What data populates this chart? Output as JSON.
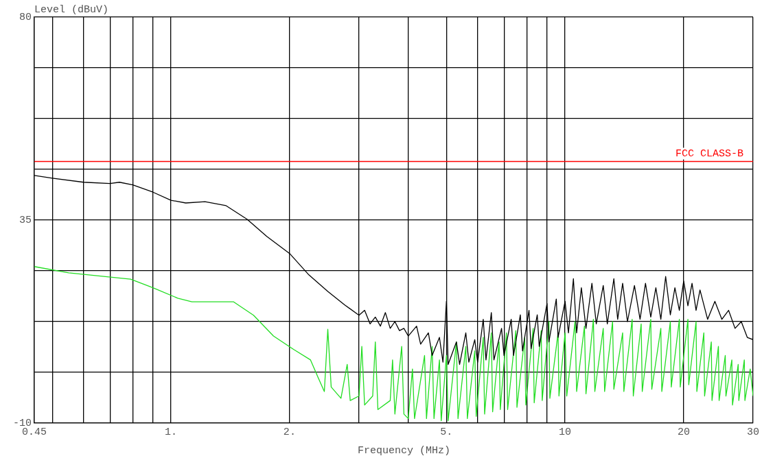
{
  "chart_data": {
    "type": "line",
    "xlabel": "Frequency (MHz)",
    "ylabel": "Level (dBuV)",
    "log": "x",
    "xlim": [
      0.45,
      30
    ],
    "ylim": [
      -10,
      80
    ],
    "xticks": [
      {
        "value": 0.45,
        "label": "0.45"
      },
      {
        "value": 0.5,
        "label": null
      },
      {
        "value": 0.6,
        "label": null
      },
      {
        "value": 0.7,
        "label": null
      },
      {
        "value": 0.8,
        "label": null
      },
      {
        "value": 0.9,
        "label": null
      },
      {
        "value": 1,
        "label": "1."
      },
      {
        "value": 2,
        "label": "2."
      },
      {
        "value": 3,
        "label": null
      },
      {
        "value": 4,
        "label": null
      },
      {
        "value": 5,
        "label": "5."
      },
      {
        "value": 6,
        "label": null
      },
      {
        "value": 7,
        "label": null
      },
      {
        "value": 8,
        "label": null
      },
      {
        "value": 9,
        "label": null
      },
      10,
      20,
      30
    ],
    "yticks": [
      80,
      {
        "value": 68.75,
        "label": null
      },
      {
        "value": 57.5,
        "label": null
      },
      {
        "value": 46.25,
        "label": null
      },
      35,
      {
        "value": 23.75,
        "label": null
      },
      {
        "value": 12.5,
        "label": null
      },
      {
        "value": 1.25,
        "label": null
      },
      -10
    ],
    "grid": true,
    "legend": false,
    "marker": "none",
    "line_style": "solid",
    "ref_lines": [
      {
        "axis": "y",
        "value": 48,
        "label": "FCC CLASS-B",
        "color": "#ff0000"
      }
    ],
    "series": [
      {
        "color": "#000000",
        "x": [
          0.45,
          0.5,
          0.6,
          0.7,
          0.74,
          0.8,
          0.9,
          1.0,
          1.09,
          1.22,
          1.38,
          1.56,
          1.75,
          2,
          2.23,
          2.5,
          2.76,
          3.0,
          3.1,
          3.2,
          3.3,
          3.4,
          3.5,
          3.6,
          3.7,
          3.8,
          3.9,
          4.0,
          4.2,
          4.3,
          4.5,
          4.6,
          4.8,
          4.9,
          5.0,
          5.05,
          5.3,
          5.4,
          5.6,
          5.7,
          5.9,
          6.0,
          6.2,
          6.3,
          6.5,
          6.6,
          6.9,
          7.0,
          7.3,
          7.4,
          7.7,
          7.8,
          8.1,
          8.2,
          8.5,
          8.6,
          9.0,
          9.1,
          9.5,
          9.6,
          10,
          10.2,
          10.5,
          10.7,
          11,
          11.3,
          11.7,
          12,
          12.5,
          12.8,
          13.3,
          13.6,
          14,
          14.4,
          15,
          15.5,
          16,
          16.5,
          17,
          17.5,
          18,
          18.5,
          19,
          19.5,
          20,
          20.5,
          21,
          21.5,
          22,
          23,
          24,
          25,
          26,
          27,
          28,
          29,
          30
        ],
        "values": [
          44.9,
          44.3,
          43.4,
          43.1,
          43.4,
          42.8,
          41.2,
          39.4,
          38.8,
          39.1,
          38.2,
          35.2,
          31.4,
          27.6,
          23.0,
          19.2,
          16.2,
          13.9,
          15,
          12,
          13.5,
          11.5,
          14.5,
          11,
          12.5,
          10.5,
          11,
          9.3,
          11.5,
          7.5,
          10,
          5,
          9,
          3.5,
          17,
          3,
          8,
          3,
          10,
          3.5,
          8.5,
          3.5,
          13,
          4,
          14.5,
          4,
          11,
          5,
          13,
          5,
          14,
          6,
          15,
          6.5,
          14,
          7,
          16.5,
          8,
          17.5,
          9,
          17,
          10,
          22,
          10,
          20,
          11,
          21,
          12,
          20.5,
          12,
          22,
          13,
          21,
          12.5,
          20.5,
          13,
          21,
          13.5,
          20,
          13,
          22.5,
          14,
          20,
          15,
          21.5,
          16,
          21,
          15,
          19.5,
          13,
          17,
          13,
          15,
          11,
          12.5,
          9,
          8.5
        ]
      },
      {
        "color": "#22dd22",
        "x": [
          0.45,
          0.55,
          0.79,
          0.9,
          1.04,
          1.13,
          1.44,
          1.62,
          1.82,
          2.05,
          2.26,
          2.36,
          2.45,
          2.5,
          2.55,
          2.7,
          2.8,
          2.85,
          3.0,
          3.05,
          3.1,
          3.25,
          3.3,
          3.35,
          3.6,
          3.65,
          3.7,
          3.85,
          3.9,
          4.0,
          4.1,
          4.15,
          4.4,
          4.45,
          4.6,
          4.65,
          4.8,
          4.85,
          5.0,
          5.05,
          5.3,
          5.35,
          5.6,
          5.65,
          5.9,
          5.95,
          6.2,
          6.25,
          6.5,
          6.55,
          6.8,
          6.85,
          7.1,
          7.15,
          7.5,
          7.55,
          7.9,
          7.95,
          8.3,
          8.35,
          8.7,
          8.75,
          9.1,
          9.15,
          9.6,
          9.65,
          10,
          10.1,
          10.6,
          10.7,
          11.2,
          11.3,
          11.8,
          11.9,
          12.5,
          12.6,
          13.2,
          13.3,
          14,
          14.1,
          14.8,
          14.9,
          15.6,
          15.7,
          16.5,
          16.6,
          17.5,
          17.6,
          18.5,
          18.6,
          19.5,
          19.6,
          20.5,
          20.6,
          21.5,
          21.6,
          22.5,
          22.6,
          23.5,
          23.6,
          24.5,
          24.6,
          25.5,
          25.6,
          26.5,
          26.6,
          27.5,
          27.6,
          28.5,
          28.6,
          29.5,
          30
        ],
        "values": [
          24.7,
          23.3,
          21.9,
          20.0,
          17.7,
          16.9,
          16.9,
          13.9,
          9.3,
          6.3,
          4.0,
          0.2,
          -3,
          10.8,
          -2,
          -4.5,
          3,
          -5,
          -4,
          7,
          -6,
          -4,
          8,
          -7,
          -5,
          4,
          -8,
          7,
          -8,
          -9,
          2,
          -9,
          5,
          -9,
          7,
          -9,
          4,
          -9.5,
          5,
          -9.5,
          8,
          -9,
          7,
          -9,
          6,
          -8.5,
          9,
          -8,
          10,
          -7.5,
          8,
          -7,
          10,
          -7,
          10.5,
          -6.5,
          9,
          -6,
          11,
          -5.5,
          10.5,
          -5,
          12.5,
          -4.5,
          10,
          -4,
          10,
          -4,
          12.5,
          -3,
          11.5,
          -3.5,
          13,
          -3,
          11,
          -3,
          12.5,
          -2.5,
          10,
          -3,
          13,
          -4,
          12,
          -3,
          13,
          -2.5,
          11,
          -3,
          12.5,
          -2,
          13,
          -2,
          13,
          -1.5,
          12.5,
          -3,
          10,
          -4,
          8,
          -5,
          7,
          -5,
          5,
          -4,
          4,
          -6,
          3,
          -5,
          4,
          -5,
          2,
          -4
        ]
      }
    ]
  }
}
